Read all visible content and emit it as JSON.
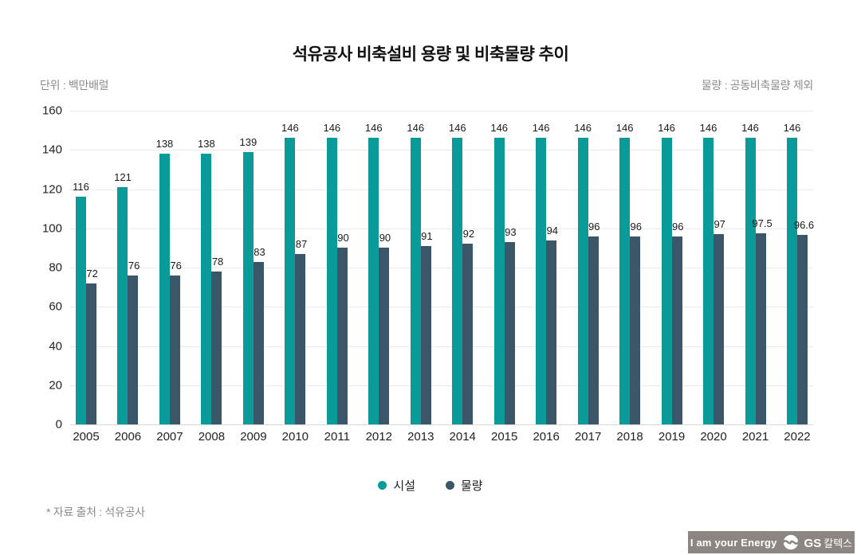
{
  "header": {
    "title": "석유공사 비축설비 용량 및 비축물량 추이",
    "unit_label": "단위 : 백만배럴",
    "volume_note": "물량 : 공동비축물량 제외"
  },
  "chart_data": {
    "type": "bar",
    "categories": [
      "2005",
      "2006",
      "2007",
      "2008",
      "2009",
      "2010",
      "2011",
      "2012",
      "2013",
      "2014",
      "2015",
      "2016",
      "2017",
      "2018",
      "2019",
      "2020",
      "2021",
      "2022"
    ],
    "series": [
      {
        "name": "시설",
        "values": [
          116,
          121,
          138,
          138,
          139,
          146,
          146,
          146,
          146,
          146,
          146,
          146,
          146,
          146,
          146,
          146,
          146,
          146
        ]
      },
      {
        "name": "물량",
        "values": [
          72,
          76,
          76,
          78,
          83,
          87,
          90,
          90,
          91,
          92,
          93,
          94,
          96,
          96,
          96,
          97,
          97.5,
          96.6
        ]
      }
    ],
    "title": "석유공사 비축설비 용량 및 비축물량 추이",
    "xlabel": "",
    "ylabel": "백만배럴",
    "ylim": [
      0,
      160
    ],
    "ytick_step": 20,
    "grid": "horizontal",
    "legend_position": "bottom",
    "value_labels": true
  },
  "legend": {
    "items": [
      {
        "label": "시설",
        "color": "#0a9a9a"
      },
      {
        "label": "물량",
        "color": "#3c5669"
      }
    ]
  },
  "footer": {
    "source_note": "* 자료 출처 : 석유공사",
    "brand_slogan": "I am your Energy",
    "brand_name_bold": "GS",
    "brand_name_rest": "칼텍스"
  },
  "colors": {
    "facility": "#0a9a9a",
    "volume": "#3c5669",
    "brand_bar": "#8b8681",
    "gridline": "#eaeaea",
    "baseline": "#d8d8d8"
  }
}
